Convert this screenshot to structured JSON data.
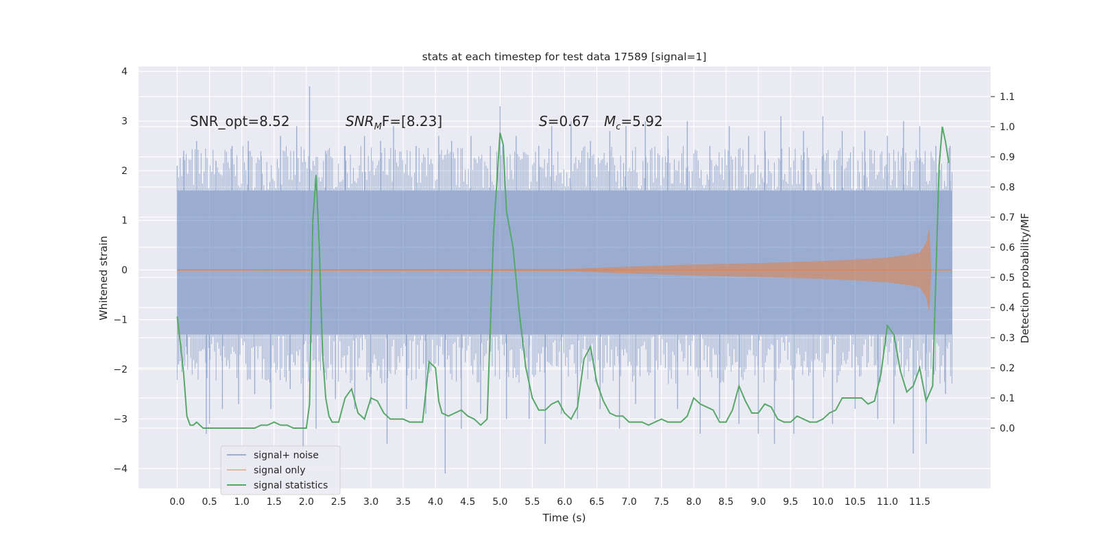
{
  "chart_data": {
    "type": "line",
    "title": "stats at each timestep for test data 17589 [signal=1]",
    "xlabel": "Time (s)",
    "ylabel_left": "Whitened strain",
    "ylabel_right": "Detection probability/MF",
    "xlim": [
      -0.6,
      12.6
    ],
    "ylim_left": [
      -4.4,
      4.1
    ],
    "ylim_right": [
      -0.2,
      1.2
    ],
    "grid": true,
    "legend_position": "lower-left",
    "x_ticks": [
      "0.0",
      "0.5",
      "1.0",
      "1.5",
      "2.0",
      "2.5",
      "3.0",
      "3.5",
      "4.0",
      "4.5",
      "5.0",
      "5.5",
      "6.0",
      "6.5",
      "7.0",
      "7.5",
      "8.0",
      "8.5",
      "9.0",
      "9.5",
      "10.0",
      "10.5",
      "11.0",
      "11.5"
    ],
    "y_ticks_left": [
      "−4",
      "−3",
      "−2",
      "−1",
      "0",
      "1",
      "2",
      "3",
      "4"
    ],
    "y_ticks_right": [
      "0.0",
      "0.1",
      "0.2",
      "0.3",
      "0.4",
      "0.5",
      "0.6",
      "0.7",
      "0.8",
      "0.9",
      "1.0",
      "1.1"
    ],
    "annotations": {
      "snr_opt": "SNR_opt=8.52",
      "snr_mf_sym": "SNR",
      "snr_mf_sub": "M",
      "snr_mf_rest": "F=[8.23]",
      "s_sym": "S",
      "s_rest": "=0.67",
      "mc_sym": "M",
      "mc_sub": "c",
      "mc_rest": "=5.92"
    },
    "series": [
      {
        "name": "signal+ noise",
        "axis": "left",
        "color": "#4c72b0",
        "x_range": [
          0.0,
          12.0
        ],
        "band": [
          -1.3,
          1.6
        ],
        "spikes": [
          [
            0.0,
            2.1
          ],
          [
            0.02,
            -1.9
          ],
          [
            0.1,
            2.4
          ],
          [
            0.15,
            -1.7
          ],
          [
            0.3,
            2.6
          ],
          [
            0.45,
            -3.3
          ],
          [
            0.5,
            -3.1
          ],
          [
            0.6,
            2.2
          ],
          [
            0.7,
            -2.8
          ],
          [
            0.85,
            2.5
          ],
          [
            0.95,
            -2.7
          ],
          [
            1.1,
            2.6
          ],
          [
            1.2,
            -2.5
          ],
          [
            1.3,
            2.3
          ],
          [
            1.45,
            -2.8
          ],
          [
            1.6,
            2.7
          ],
          [
            1.75,
            -2.4
          ],
          [
            1.85,
            2.9
          ],
          [
            1.95,
            -3.6
          ],
          [
            2.05,
            3.7
          ],
          [
            2.15,
            -3.2
          ],
          [
            2.3,
            2.4
          ],
          [
            2.45,
            -2.6
          ],
          [
            2.6,
            2.5
          ],
          [
            2.75,
            -2.8
          ],
          [
            2.9,
            2.7
          ],
          [
            3.0,
            -2.7
          ],
          [
            3.15,
            2.6
          ],
          [
            3.25,
            -3.5
          ],
          [
            3.35,
            2.9
          ],
          [
            3.55,
            -2.8
          ],
          [
            3.7,
            2.5
          ],
          [
            3.85,
            -2.9
          ],
          [
            4.05,
            2.7
          ],
          [
            4.15,
            -4.1
          ],
          [
            4.25,
            2.6
          ],
          [
            4.4,
            -3.2
          ],
          [
            4.55,
            2.7
          ],
          [
            4.7,
            -2.9
          ],
          [
            4.85,
            2.5
          ],
          [
            5.0,
            3.3
          ],
          [
            5.1,
            -3.0
          ],
          [
            5.25,
            2.7
          ],
          [
            5.45,
            -3.0
          ],
          [
            5.6,
            2.5
          ],
          [
            5.7,
            -3.5
          ],
          [
            5.8,
            2.9
          ],
          [
            5.95,
            -2.9
          ],
          [
            6.1,
            3.0
          ],
          [
            6.2,
            -3.0
          ],
          [
            6.4,
            2.6
          ],
          [
            6.55,
            -2.8
          ],
          [
            6.7,
            2.8
          ],
          [
            6.85,
            -3.2
          ],
          [
            6.95,
            2.9
          ],
          [
            7.1,
            -2.7
          ],
          [
            7.25,
            3.0
          ],
          [
            7.4,
            -3.0
          ],
          [
            7.6,
            2.7
          ],
          [
            7.75,
            -2.8
          ],
          [
            7.9,
            3.0
          ],
          [
            8.1,
            -3.3
          ],
          [
            8.25,
            2.5
          ],
          [
            8.4,
            -3.0
          ],
          [
            8.55,
            2.9
          ],
          [
            8.7,
            -3.1
          ],
          [
            8.85,
            2.7
          ],
          [
            9.0,
            -3.3
          ],
          [
            9.1,
            2.8
          ],
          [
            9.25,
            -3.5
          ],
          [
            9.35,
            3.1
          ],
          [
            9.55,
            -3.3
          ],
          [
            9.7,
            2.8
          ],
          [
            9.85,
            -3.0
          ],
          [
            10.0,
            3.1
          ],
          [
            10.15,
            -3.1
          ],
          [
            10.3,
            2.8
          ],
          [
            10.5,
            -2.8
          ],
          [
            10.65,
            2.8
          ],
          [
            10.85,
            -3.0
          ],
          [
            11.0,
            2.7
          ],
          [
            11.1,
            -3.1
          ],
          [
            11.25,
            3.0
          ],
          [
            11.4,
            -3.7
          ],
          [
            11.5,
            2.9
          ],
          [
            11.6,
            -3.5
          ],
          [
            11.75,
            2.5
          ],
          [
            11.9,
            -2.5
          ],
          [
            11.97,
            2.5
          ]
        ]
      },
      {
        "name": "signal only",
        "axis": "left",
        "color": "#dd8452",
        "envelope": {
          "x": [
            0.0,
            6.0,
            7.0,
            8.0,
            9.0,
            10.0,
            10.5,
            11.0,
            11.3,
            11.5,
            11.6,
            11.65,
            11.68
          ],
          "amp": [
            0.01,
            0.02,
            0.07,
            0.11,
            0.14,
            0.18,
            0.21,
            0.25,
            0.3,
            0.35,
            0.55,
            0.85,
            0.0
          ]
        }
      },
      {
        "name": "signal statistics",
        "axis": "right",
        "color": "#55a868",
        "x": [
          0.0,
          0.05,
          0.1,
          0.15,
          0.2,
          0.25,
          0.3,
          0.4,
          0.5,
          0.6,
          0.7,
          0.8,
          0.9,
          1.0,
          1.1,
          1.2,
          1.3,
          1.4,
          1.5,
          1.6,
          1.7,
          1.8,
          1.9,
          2.0,
          2.05,
          2.1,
          2.15,
          2.2,
          2.25,
          2.3,
          2.35,
          2.4,
          2.5,
          2.6,
          2.7,
          2.8,
          2.9,
          3.0,
          3.1,
          3.2,
          3.3,
          3.4,
          3.5,
          3.6,
          3.7,
          3.8,
          3.9,
          4.0,
          4.05,
          4.1,
          4.2,
          4.3,
          4.4,
          4.5,
          4.6,
          4.7,
          4.8,
          4.9,
          5.0,
          5.05,
          5.1,
          5.2,
          5.3,
          5.4,
          5.5,
          5.6,
          5.7,
          5.8,
          5.9,
          6.0,
          6.1,
          6.2,
          6.3,
          6.4,
          6.5,
          6.6,
          6.7,
          6.8,
          6.9,
          7.0,
          7.1,
          7.2,
          7.3,
          7.4,
          7.5,
          7.6,
          7.7,
          7.8,
          7.9,
          8.0,
          8.1,
          8.2,
          8.3,
          8.4,
          8.5,
          8.6,
          8.7,
          8.8,
          8.9,
          9.0,
          9.1,
          9.2,
          9.3,
          9.4,
          9.5,
          9.6,
          9.7,
          9.8,
          9.9,
          10.0,
          10.1,
          10.2,
          10.3,
          10.4,
          10.5,
          10.6,
          10.7,
          10.8,
          10.9,
          11.0,
          11.1,
          11.2,
          11.3,
          11.4,
          11.5,
          11.6,
          11.7,
          11.75,
          11.8,
          11.85,
          11.9,
          11.95
        ],
        "values": [
          0.37,
          0.28,
          0.18,
          0.04,
          0.01,
          0.01,
          0.02,
          0.0,
          0.0,
          0.0,
          0.0,
          0.0,
          0.0,
          0.0,
          0.0,
          0.0,
          0.01,
          0.01,
          0.02,
          0.01,
          0.01,
          0.0,
          0.0,
          0.0,
          0.08,
          0.69,
          0.84,
          0.6,
          0.25,
          0.1,
          0.04,
          0.02,
          0.02,
          0.1,
          0.13,
          0.05,
          0.03,
          0.1,
          0.09,
          0.05,
          0.03,
          0.03,
          0.03,
          0.02,
          0.02,
          0.02,
          0.22,
          0.2,
          0.09,
          0.05,
          0.04,
          0.05,
          0.06,
          0.04,
          0.03,
          0.01,
          0.03,
          0.65,
          0.98,
          0.94,
          0.72,
          0.6,
          0.38,
          0.2,
          0.1,
          0.06,
          0.06,
          0.08,
          0.09,
          0.05,
          0.03,
          0.07,
          0.23,
          0.27,
          0.15,
          0.09,
          0.05,
          0.04,
          0.04,
          0.02,
          0.02,
          0.02,
          0.01,
          0.02,
          0.03,
          0.02,
          0.02,
          0.02,
          0.04,
          0.1,
          0.08,
          0.07,
          0.06,
          0.02,
          0.02,
          0.06,
          0.14,
          0.09,
          0.05,
          0.05,
          0.08,
          0.07,
          0.03,
          0.02,
          0.02,
          0.04,
          0.03,
          0.02,
          0.02,
          0.03,
          0.05,
          0.06,
          0.1,
          0.1,
          0.1,
          0.1,
          0.08,
          0.09,
          0.18,
          0.34,
          0.31,
          0.19,
          0.12,
          0.14,
          0.2,
          0.09,
          0.14,
          0.5,
          0.87,
          1.0,
          0.95,
          0.88
        ]
      }
    ]
  }
}
